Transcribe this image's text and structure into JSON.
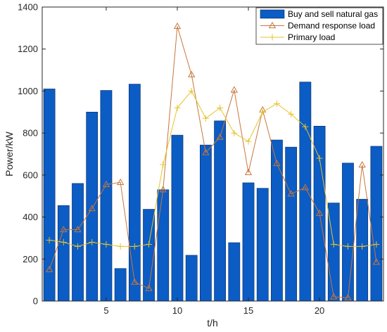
{
  "chart_data": {
    "type": "bar+line",
    "title": "",
    "xlabel": "t/h",
    "ylabel": "Power/kW",
    "xlim": [
      0.5,
      24.5
    ],
    "ylim": [
      0,
      1400
    ],
    "x": [
      1,
      2,
      3,
      4,
      5,
      6,
      7,
      8,
      9,
      10,
      11,
      12,
      13,
      14,
      15,
      16,
      17,
      18,
      19,
      20,
      21,
      22,
      23,
      24
    ],
    "x_ticks": [
      5,
      10,
      15,
      20
    ],
    "y_ticks": [
      0,
      200,
      400,
      600,
      800,
      1000,
      1200,
      1400
    ],
    "legend_position": "top-right",
    "series": [
      {
        "name": "Buy and sell natural gas",
        "kind": "bar",
        "color": "#0b5cc4",
        "edge_color": "#0a2a5c",
        "values": [
          1010,
          455,
          560,
          900,
          1003,
          155,
          1033,
          437,
          530,
          790,
          218,
          743,
          858,
          278,
          563,
          537,
          767,
          733,
          1043,
          833,
          467,
          657,
          485,
          737
        ]
      },
      {
        "name": "Demand response load",
        "kind": "line",
        "marker": "triangle",
        "color": "#c8763a",
        "values": [
          150,
          340,
          340,
          440,
          555,
          565,
          90,
          60,
          530,
          1308,
          1078,
          707,
          780,
          1005,
          612,
          910,
          655,
          510,
          540,
          418,
          20,
          15,
          648,
          185
        ]
      },
      {
        "name": "Primary load",
        "kind": "line",
        "marker": "plus",
        "color": "#e6c22a",
        "values": [
          290,
          280,
          260,
          280,
          270,
          260,
          260,
          270,
          650,
          920,
          1000,
          870,
          920,
          800,
          760,
          900,
          940,
          890,
          830,
          680,
          270,
          260,
          260,
          270
        ]
      }
    ]
  }
}
